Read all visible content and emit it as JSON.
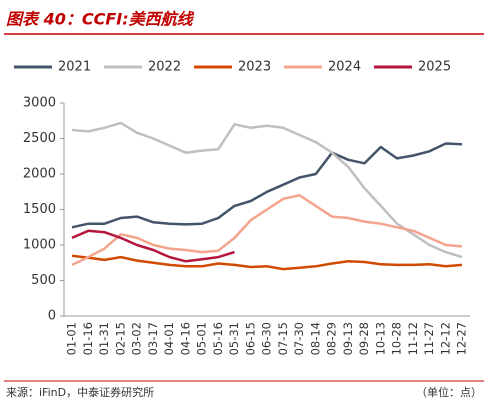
{
  "chart_data": {
    "type": "line",
    "title": "图表 40：CCFI:美西航线",
    "source": "来源：iFinD，中泰证券研究所",
    "unit": "（单位：点）",
    "categories": [
      "01-01",
      "01-16",
      "01-31",
      "02-15",
      "03-02",
      "03-17",
      "04-01",
      "04-16",
      "05-01",
      "05-16",
      "05-31",
      "06-15",
      "06-30",
      "07-15",
      "07-30",
      "08-14",
      "08-29",
      "09-13",
      "09-28",
      "10-13",
      "10-28",
      "11-12",
      "11-27",
      "12-12",
      "12-27"
    ],
    "series": [
      {
        "name": "2021",
        "color": "#44546a",
        "values": [
          1250,
          1300,
          1300,
          1380,
          1400,
          1320,
          1300,
          1290,
          1300,
          1380,
          1550,
          1620,
          1750,
          1850,
          1950,
          2000,
          2300,
          2200,
          2150,
          2380,
          2220,
          2260,
          2320,
          2430,
          2420
        ]
      },
      {
        "name": "2022",
        "color": "#bfbfbf",
        "values": [
          2620,
          2600,
          2650,
          2720,
          2580,
          2500,
          2400,
          2300,
          2330,
          2350,
          2700,
          2650,
          2680,
          2650,
          2550,
          2450,
          2300,
          2100,
          1800,
          1550,
          1300,
          1150,
          1000,
          900,
          830
        ]
      },
      {
        "name": "2023",
        "color": "#d04a02",
        "values": [
          850,
          820,
          790,
          830,
          780,
          750,
          720,
          700,
          700,
          740,
          720,
          690,
          700,
          660,
          680,
          700,
          740,
          770,
          760,
          730,
          720,
          720,
          730,
          700,
          720
        ]
      },
      {
        "name": "2024",
        "color": "#f4a48c",
        "values": [
          720,
          830,
          950,
          1150,
          1100,
          1000,
          950,
          930,
          900,
          920,
          1100,
          1350,
          1500,
          1650,
          1700,
          1550,
          1400,
          1380,
          1330,
          1300,
          1250,
          1200,
          1100,
          1000,
          980
        ]
      },
      {
        "name": "2025",
        "color": "#b5163d",
        "values": [
          1100,
          1200,
          1180,
          1100,
          1000,
          930,
          830,
          770,
          800,
          830,
          900,
          null,
          null,
          null,
          null,
          null,
          null,
          null,
          null,
          null,
          null,
          null,
          null,
          null,
          null
        ]
      }
    ],
    "ylim": [
      0,
      3000
    ],
    "yticks": [
      0,
      500,
      1000,
      1500,
      2000,
      2500,
      3000
    ],
    "grid": false
  }
}
